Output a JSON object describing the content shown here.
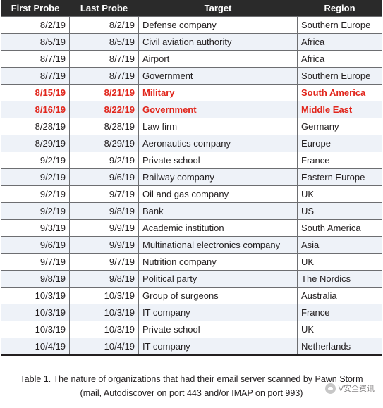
{
  "table": {
    "headers": [
      "First Probe",
      "Last Probe",
      "Target",
      "Region"
    ],
    "rows": [
      {
        "first": "8/2/19",
        "last": "8/2/19",
        "target": "Defense company",
        "region": "Southern Europe",
        "highlight": false
      },
      {
        "first": "8/5/19",
        "last": "8/5/19",
        "target": "Civil aviation authority",
        "region": "Africa",
        "highlight": false
      },
      {
        "first": "8/7/19",
        "last": "8/7/19",
        "target": "Airport",
        "region": "Africa",
        "highlight": false
      },
      {
        "first": "8/7/19",
        "last": "8/7/19",
        "target": "Government",
        "region": "Southern Europe",
        "highlight": false
      },
      {
        "first": "8/15/19",
        "last": "8/21/19",
        "target": "Military",
        "region": "South America",
        "highlight": true
      },
      {
        "first": "8/16/19",
        "last": "8/22/19",
        "target": "Government",
        "region": "Middle East",
        "highlight": true
      },
      {
        "first": "8/28/19",
        "last": "8/28/19",
        "target": "Law firm",
        "region": "Germany",
        "highlight": false
      },
      {
        "first": "8/29/19",
        "last": "8/29/19",
        "target": "Aeronautics company",
        "region": "Europe",
        "highlight": false
      },
      {
        "first": "9/2/19",
        "last": "9/2/19",
        "target": "Private school",
        "region": "France",
        "highlight": false
      },
      {
        "first": "9/2/19",
        "last": "9/6/19",
        "target": "Railway company",
        "region": "Eastern Europe",
        "highlight": false
      },
      {
        "first": "9/2/19",
        "last": "9/7/19",
        "target": "Oil and gas company",
        "region": "UK",
        "highlight": false
      },
      {
        "first": "9/2/19",
        "last": "9/8/19",
        "target": "Bank",
        "region": "US",
        "highlight": false
      },
      {
        "first": "9/3/19",
        "last": "9/9/19",
        "target": "Academic institution",
        "region": "South America",
        "highlight": false
      },
      {
        "first": "9/6/19",
        "last": "9/9/19",
        "target": "Multinational electronics company",
        "region": "Asia",
        "highlight": false
      },
      {
        "first": "9/7/19",
        "last": "9/7/19",
        "target": "Nutrition company",
        "region": "UK",
        "highlight": false
      },
      {
        "first": "9/8/19",
        "last": "9/8/19",
        "target": "Political party",
        "region": "The Nordics",
        "highlight": false
      },
      {
        "first": "10/3/19",
        "last": "10/3/19",
        "target": "Group of surgeons",
        "region": "Australia",
        "highlight": false
      },
      {
        "first": "10/3/19",
        "last": "10/3/19",
        "target": "IT company",
        "region": "France",
        "highlight": false
      },
      {
        "first": "10/3/19",
        "last": "10/3/19",
        "target": "Private school",
        "region": "UK",
        "highlight": false
      },
      {
        "first": "10/4/19",
        "last": "10/4/19",
        "target": "IT company",
        "region": "Netherlands",
        "highlight": false
      }
    ]
  },
  "caption": {
    "line1": "Table 1. The nature of organizations that had their email server scanned by Pawn Storm",
    "line2": "(mail, Autodiscover on port 443 and/or IMAP on port 993)"
  },
  "watermark": {
    "icon": "wechat-icon",
    "text": "V安全资讯"
  },
  "colors": {
    "header_bg": "#2a2a2a",
    "highlight_text": "#e1261c",
    "alt_row_bg": "#eef2f8"
  }
}
